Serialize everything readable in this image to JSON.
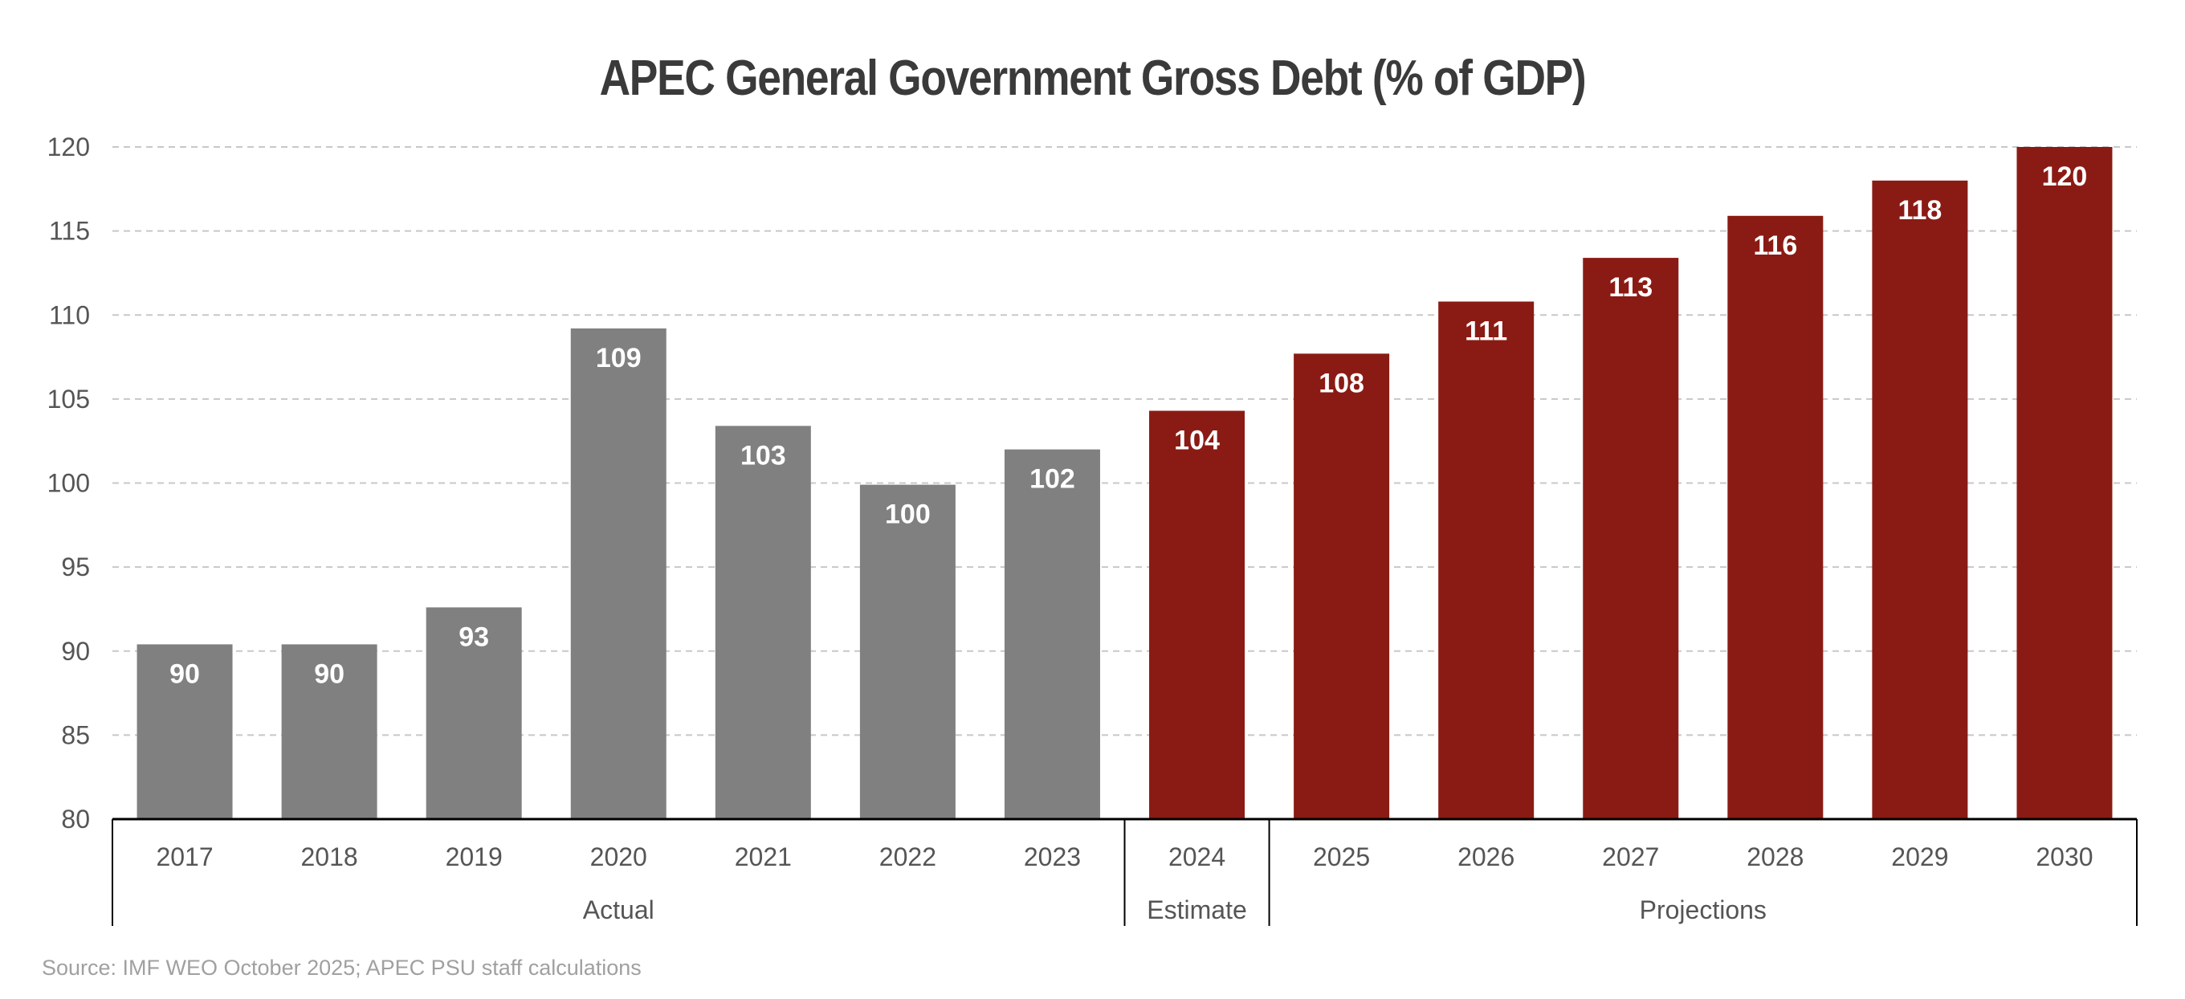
{
  "chart_data": {
    "type": "bar",
    "title": "APEC General Government Gross Debt (% of GDP)",
    "xlabel": "",
    "ylabel": "",
    "ylim": [
      80,
      120
    ],
    "yticks": [
      80,
      85,
      90,
      95,
      100,
      105,
      110,
      115,
      120
    ],
    "grid": true,
    "categories": [
      "2017",
      "2018",
      "2019",
      "2020",
      "2021",
      "2022",
      "2023",
      "2024",
      "2025",
      "2026",
      "2027",
      "2028",
      "2029",
      "2030"
    ],
    "values": [
      90.4,
      90.4,
      92.6,
      109.2,
      103.4,
      99.9,
      102.0,
      104.3,
      107.7,
      110.8,
      113.4,
      115.9,
      118.0,
      120.0
    ],
    "data_labels": [
      "90",
      "90",
      "93",
      "109",
      "103",
      "100",
      "102",
      "104",
      "108",
      "111",
      "113",
      "116",
      "118",
      "120"
    ],
    "groups": [
      {
        "label": "Actual",
        "categories": [
          "2017",
          "2018",
          "2019",
          "2020",
          "2021",
          "2022",
          "2023"
        ],
        "color": "#808080"
      },
      {
        "label": "Estimate",
        "categories": [
          "2024"
        ],
        "color": "#8A1B14"
      },
      {
        "label": "Projections",
        "categories": [
          "2025",
          "2026",
          "2027",
          "2028",
          "2029",
          "2030"
        ],
        "color": "#8A1B14"
      }
    ],
    "source": "Source: IMF WEO October 2025; APEC PSU staff calculations"
  }
}
